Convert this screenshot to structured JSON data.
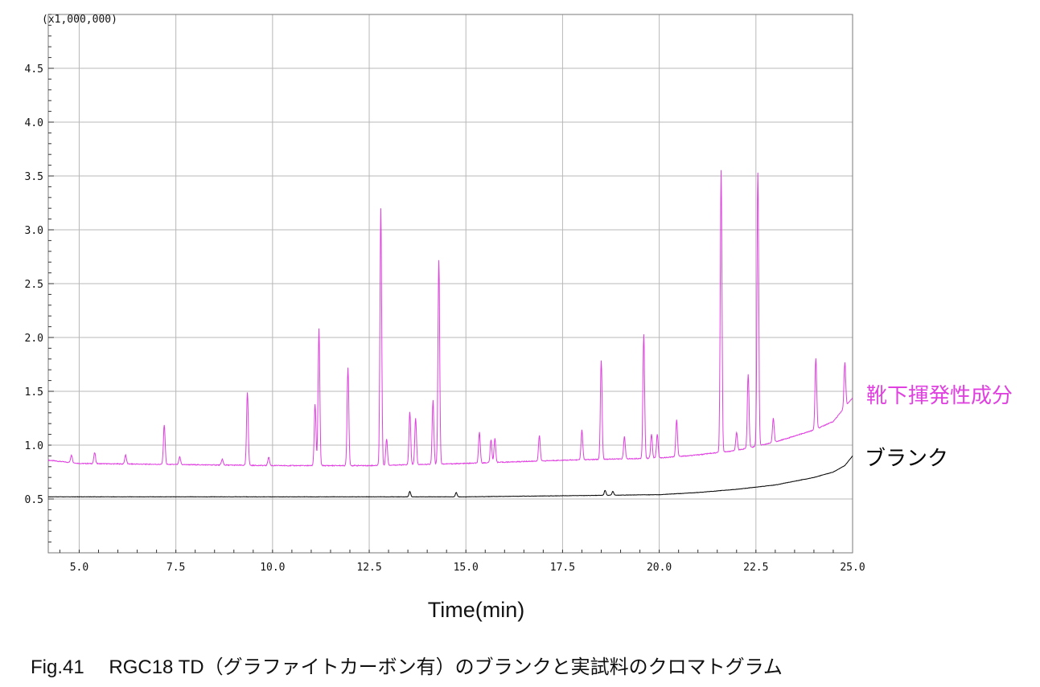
{
  "chart_data": {
    "type": "line",
    "title": "",
    "caption": "Fig.41　 RGC18 TD（グラファイトカーボン有）のブランクと実試料のクロマトグラム",
    "xlabel": "Time(min)",
    "ylabel": "",
    "y_exponent_label": "(x1,000,000)",
    "xlim": [
      4.2,
      25.0
    ],
    "ylim": [
      0.0,
      5.0
    ],
    "x_ticks": [
      "5.0",
      "7.5",
      "10.0",
      "12.5",
      "15.0",
      "17.5",
      "20.0",
      "22.5",
      "25.0"
    ],
    "y_ticks": [
      "0.5",
      "1.0",
      "1.5",
      "2.0",
      "2.5",
      "3.0",
      "3.5",
      "4.0",
      "4.5"
    ],
    "grid": true,
    "series": [
      {
        "name": "靴下揮発性成分",
        "color": "#e040e0",
        "baseline": [
          [
            4.2,
            0.86
          ],
          [
            5.0,
            0.83
          ],
          [
            10.0,
            0.81
          ],
          [
            12.5,
            0.81
          ],
          [
            15.0,
            0.83
          ],
          [
            17.5,
            0.86
          ],
          [
            20.0,
            0.88
          ],
          [
            21.0,
            0.91
          ],
          [
            22.0,
            0.95
          ],
          [
            23.0,
            1.03
          ],
          [
            24.0,
            1.14
          ],
          [
            24.5,
            1.22
          ],
          [
            25.0,
            1.44
          ]
        ],
        "peaks": [
          [
            4.8,
            0.91
          ],
          [
            5.4,
            0.93
          ],
          [
            6.2,
            0.91
          ],
          [
            7.2,
            1.19
          ],
          [
            7.6,
            0.89
          ],
          [
            8.7,
            0.87
          ],
          [
            9.35,
            1.49
          ],
          [
            9.9,
            0.89
          ],
          [
            11.1,
            1.38
          ],
          [
            11.2,
            2.08
          ],
          [
            11.95,
            1.72
          ],
          [
            12.8,
            3.2
          ],
          [
            12.95,
            1.06
          ],
          [
            13.55,
            1.31
          ],
          [
            13.7,
            1.25
          ],
          [
            14.15,
            1.42
          ],
          [
            14.3,
            2.72
          ],
          [
            15.35,
            1.12
          ],
          [
            15.65,
            1.05
          ],
          [
            15.75,
            1.06
          ],
          [
            16.9,
            1.09
          ],
          [
            18.0,
            1.14
          ],
          [
            18.5,
            1.79
          ],
          [
            19.1,
            1.08
          ],
          [
            19.6,
            2.03
          ],
          [
            19.8,
            1.1
          ],
          [
            19.95,
            1.1
          ],
          [
            20.45,
            1.24
          ],
          [
            21.6,
            3.55
          ],
          [
            22.0,
            1.12
          ],
          [
            22.3,
            1.66
          ],
          [
            22.55,
            3.53
          ],
          [
            22.95,
            1.25
          ],
          [
            24.05,
            1.81
          ],
          [
            24.8,
            1.77
          ]
        ]
      },
      {
        "name": "ブランク",
        "color": "#000000",
        "baseline": [
          [
            4.2,
            0.52
          ],
          [
            10.0,
            0.52
          ],
          [
            15.0,
            0.52
          ],
          [
            17.5,
            0.53
          ],
          [
            20.0,
            0.54
          ],
          [
            21.0,
            0.56
          ],
          [
            22.0,
            0.59
          ],
          [
            23.0,
            0.63
          ],
          [
            24.0,
            0.7
          ],
          [
            24.5,
            0.75
          ],
          [
            24.8,
            0.81
          ],
          [
            25.0,
            0.9
          ]
        ],
        "peaks": [
          [
            13.55,
            0.57
          ],
          [
            14.75,
            0.56
          ],
          [
            18.6,
            0.58
          ],
          [
            18.8,
            0.57
          ]
        ]
      }
    ]
  }
}
